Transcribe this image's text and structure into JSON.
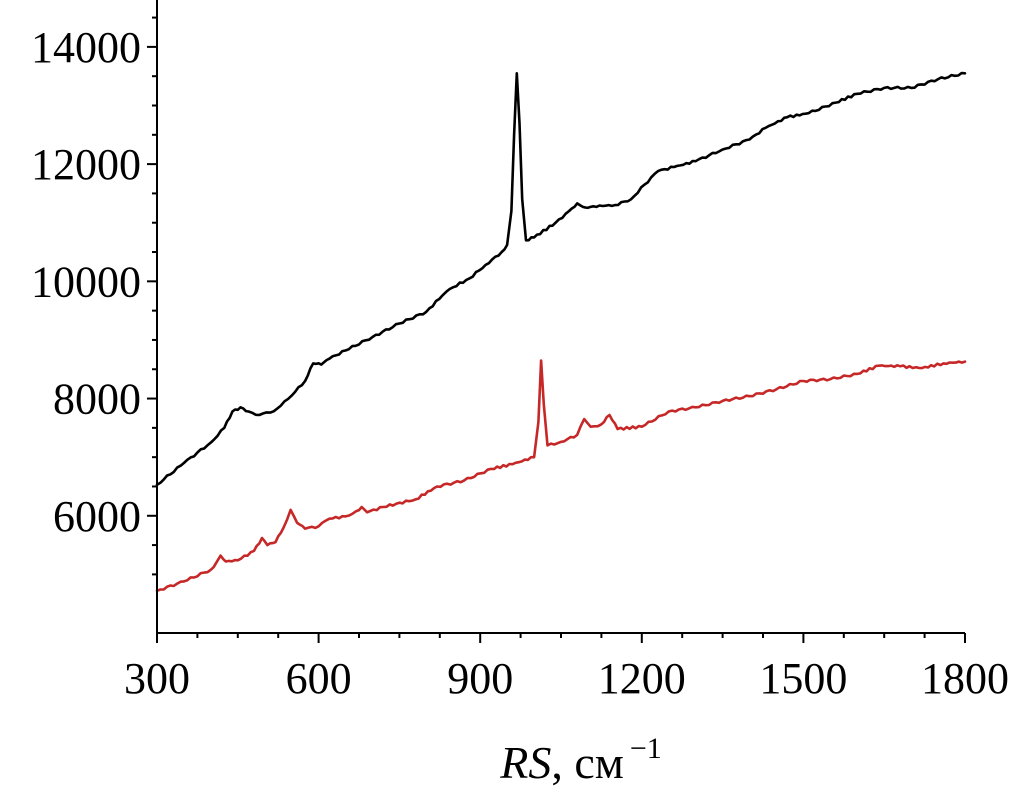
{
  "chart_data": {
    "type": "line",
    "title": "",
    "xlabel": {
      "italic": "RS",
      "rest": ", см",
      "sup": "−1"
    },
    "ylabel": "",
    "xlim": [
      300,
      1800
    ],
    "ylim": [
      4000,
      14800
    ],
    "xticks": [
      300,
      600,
      900,
      1200,
      1500,
      1800
    ],
    "xtick_labels": [
      "300",
      "600",
      "900",
      "1200",
      "1500",
      "1800"
    ],
    "yticks": [
      6000,
      8000,
      10000,
      12000,
      14000
    ],
    "ytick_labels": [
      "6000",
      "8000",
      "10000",
      "12000",
      "14000"
    ],
    "grid": false,
    "legend": "none",
    "series": [
      {
        "color": "#000000",
        "points": [
          [
            300,
            6530
          ],
          [
            350,
            6900
          ],
          [
            400,
            7250
          ],
          [
            425,
            7500
          ],
          [
            440,
            7780
          ],
          [
            455,
            7850
          ],
          [
            470,
            7780
          ],
          [
            490,
            7720
          ],
          [
            510,
            7760
          ],
          [
            530,
            7880
          ],
          [
            550,
            8050
          ],
          [
            575,
            8300
          ],
          [
            590,
            8600
          ],
          [
            605,
            8580
          ],
          [
            620,
            8680
          ],
          [
            650,
            8820
          ],
          [
            700,
            9050
          ],
          [
            750,
            9280
          ],
          [
            800,
            9480
          ],
          [
            830,
            9760
          ],
          [
            850,
            9900
          ],
          [
            880,
            10050
          ],
          [
            910,
            10280
          ],
          [
            940,
            10500
          ],
          [
            950,
            10620
          ],
          [
            958,
            11200
          ],
          [
            963,
            12500
          ],
          [
            968,
            13550
          ],
          [
            973,
            12700
          ],
          [
            978,
            11400
          ],
          [
            985,
            10700
          ],
          [
            1000,
            10750
          ],
          [
            1040,
            11000
          ],
          [
            1065,
            11200
          ],
          [
            1080,
            11330
          ],
          [
            1095,
            11260
          ],
          [
            1110,
            11280
          ],
          [
            1150,
            11300
          ],
          [
            1180,
            11400
          ],
          [
            1205,
            11650
          ],
          [
            1230,
            11880
          ],
          [
            1260,
            11950
          ],
          [
            1300,
            12050
          ],
          [
            1350,
            12250
          ],
          [
            1400,
            12420
          ],
          [
            1430,
            12620
          ],
          [
            1470,
            12800
          ],
          [
            1510,
            12870
          ],
          [
            1560,
            13050
          ],
          [
            1600,
            13200
          ],
          [
            1650,
            13300
          ],
          [
            1700,
            13300
          ],
          [
            1750,
            13450
          ],
          [
            1800,
            13550
          ]
        ]
      },
      {
        "color": "#c62828",
        "points": [
          [
            300,
            4720
          ],
          [
            350,
            4880
          ],
          [
            400,
            5080
          ],
          [
            410,
            5200
          ],
          [
            418,
            5320
          ],
          [
            428,
            5220
          ],
          [
            450,
            5240
          ],
          [
            480,
            5400
          ],
          [
            495,
            5620
          ],
          [
            505,
            5500
          ],
          [
            520,
            5550
          ],
          [
            535,
            5800
          ],
          [
            548,
            6100
          ],
          [
            560,
            5880
          ],
          [
            575,
            5780
          ],
          [
            600,
            5820
          ],
          [
            620,
            5950
          ],
          [
            650,
            5990
          ],
          [
            670,
            6080
          ],
          [
            680,
            6150
          ],
          [
            690,
            6060
          ],
          [
            720,
            6150
          ],
          [
            780,
            6280
          ],
          [
            820,
            6500
          ],
          [
            870,
            6600
          ],
          [
            920,
            6800
          ],
          [
            960,
            6880
          ],
          [
            1000,
            7000
          ],
          [
            1008,
            7600
          ],
          [
            1013,
            8650
          ],
          [
            1018,
            7900
          ],
          [
            1025,
            7200
          ],
          [
            1050,
            7260
          ],
          [
            1080,
            7380
          ],
          [
            1093,
            7650
          ],
          [
            1105,
            7520
          ],
          [
            1125,
            7560
          ],
          [
            1140,
            7720
          ],
          [
            1155,
            7480
          ],
          [
            1200,
            7520
          ],
          [
            1250,
            7780
          ],
          [
            1300,
            7850
          ],
          [
            1350,
            7960
          ],
          [
            1400,
            8040
          ],
          [
            1450,
            8160
          ],
          [
            1500,
            8300
          ],
          [
            1550,
            8330
          ],
          [
            1600,
            8420
          ],
          [
            1640,
            8560
          ],
          [
            1680,
            8550
          ],
          [
            1720,
            8520
          ],
          [
            1760,
            8600
          ],
          [
            1800,
            8630
          ]
        ]
      }
    ]
  }
}
